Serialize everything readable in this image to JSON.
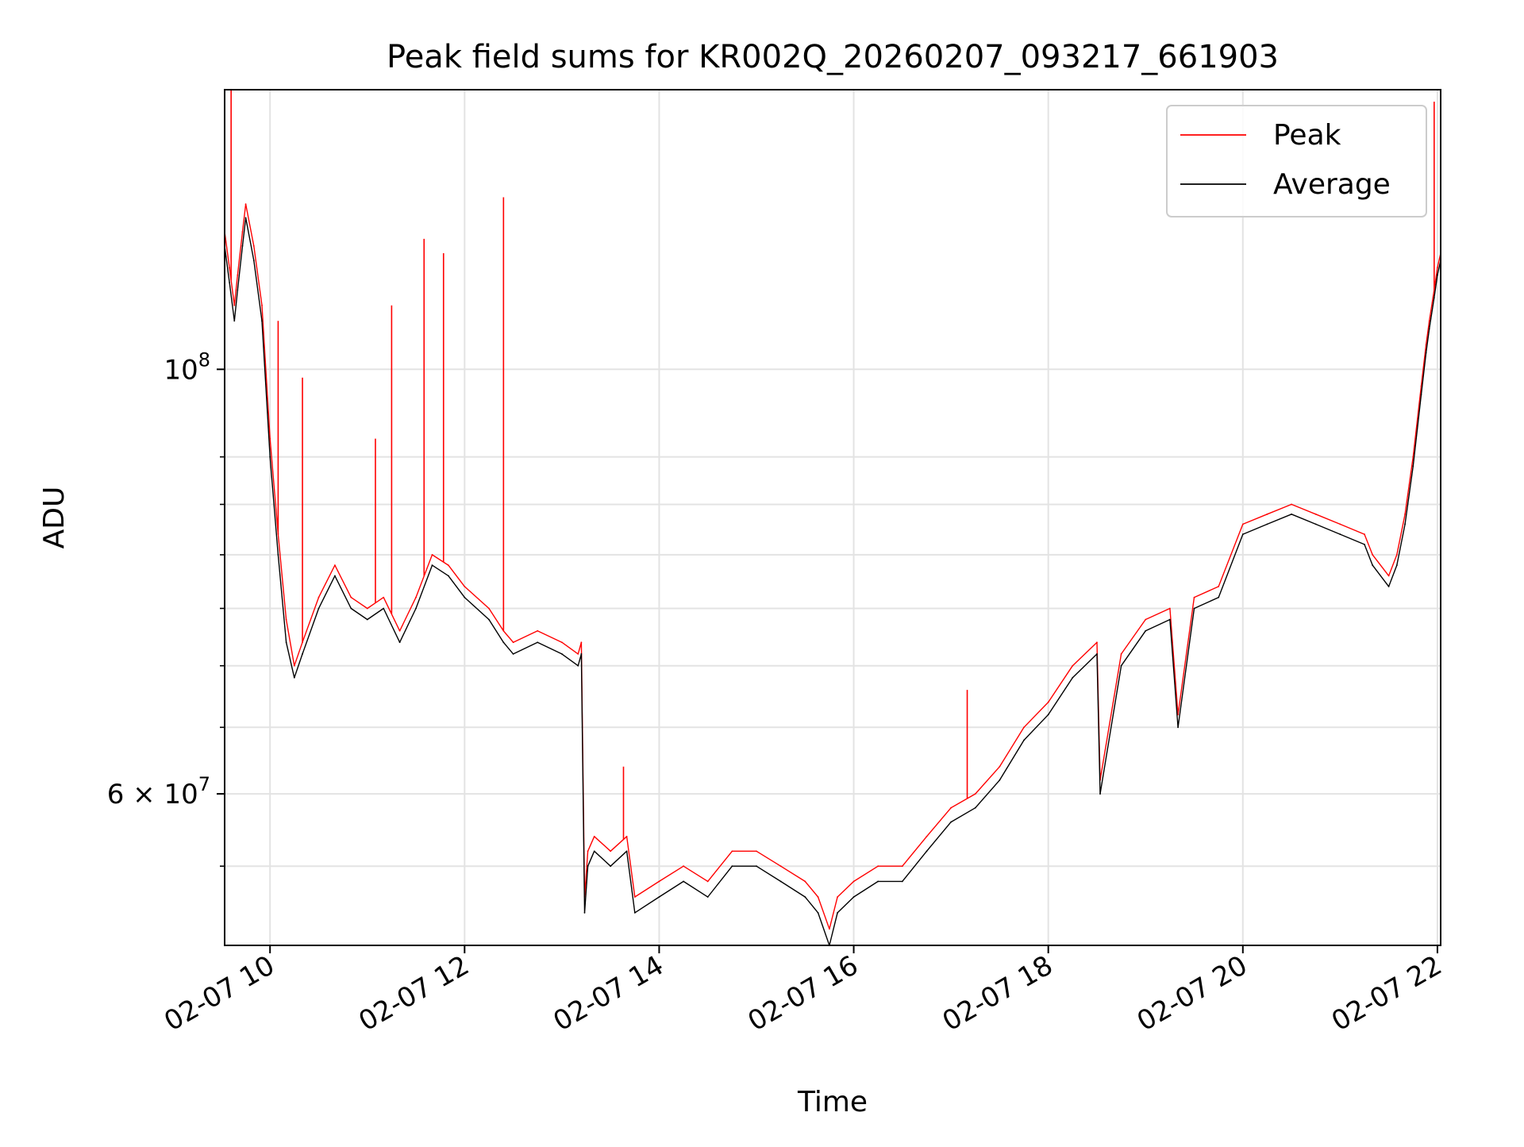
{
  "chart_data": {
    "type": "line",
    "title": "Peak field sums for KR002Q_20260207_093217_661903",
    "xlabel": "Time",
    "ylabel": "ADU",
    "x_scale": "time",
    "y_scale": "log",
    "xlim": [
      "02-07 09:32",
      "02-07 22:02"
    ],
    "ylim": [
      50000000,
      140000000
    ],
    "grid": true,
    "legend_position": "top-right",
    "x_ticks": [
      {
        "value": "02-07 10:00",
        "label": "02-07 10"
      },
      {
        "value": "02-07 12:00",
        "label": "02-07 12"
      },
      {
        "value": "02-07 14:00",
        "label": "02-07 14"
      },
      {
        "value": "02-07 16:00",
        "label": "02-07 16"
      },
      {
        "value": "02-07 18:00",
        "label": "02-07 18"
      },
      {
        "value": "02-07 20:00",
        "label": "02-07 20"
      },
      {
        "value": "02-07 22:00",
        "label": "02-07 22"
      }
    ],
    "y_major_ticks": [
      {
        "value": 60000000,
        "mantissa": "6 × 10",
        "exponent": "7"
      },
      {
        "value": 100000000,
        "mantissa": "10",
        "exponent": "8"
      }
    ],
    "y_minor_ticks": [
      55000000,
      65000000,
      70000000,
      75000000,
      80000000,
      85000000,
      90000000
    ],
    "x": [
      "02-07 09:32",
      "02-07 09:35",
      "02-07 09:38",
      "02-07 09:40",
      "02-07 09:43",
      "02-07 09:45",
      "02-07 09:50",
      "02-07 09:55",
      "02-07 10:00",
      "02-07 10:05",
      "02-07 10:10",
      "02-07 10:15",
      "02-07 10:20",
      "02-07 10:30",
      "02-07 10:40",
      "02-07 10:50",
      "02-07 11:00",
      "02-07 11:10",
      "02-07 11:20",
      "02-07 11:30",
      "02-07 11:40",
      "02-07 11:50",
      "02-07 12:00",
      "02-07 12:15",
      "02-07 12:24",
      "02-07 12:30",
      "02-07 12:45",
      "02-07 13:00",
      "02-07 13:10",
      "02-07 13:12",
      "02-07 13:14",
      "02-07 13:16",
      "02-07 13:20",
      "02-07 13:30",
      "02-07 13:40",
      "02-07 13:45",
      "02-07 14:00",
      "02-07 14:15",
      "02-07 14:30",
      "02-07 14:45",
      "02-07 15:00",
      "02-07 15:15",
      "02-07 15:30",
      "02-07 15:38",
      "02-07 15:45",
      "02-07 15:50",
      "02-07 16:00",
      "02-07 16:15",
      "02-07 16:30",
      "02-07 16:45",
      "02-07 17:00",
      "02-07 17:15",
      "02-07 17:30",
      "02-07 17:45",
      "02-07 18:00",
      "02-07 18:15",
      "02-07 18:30",
      "02-07 18:32",
      "02-07 18:45",
      "02-07 19:00",
      "02-07 19:15",
      "02-07 19:20",
      "02-07 19:30",
      "02-07 19:45",
      "02-07 20:00",
      "02-07 20:15",
      "02-07 20:30",
      "02-07 20:45",
      "02-07 21:00",
      "02-07 21:15",
      "02-07 21:20",
      "02-07 21:30",
      "02-07 21:35",
      "02-07 21:40",
      "02-07 21:45",
      "02-07 21:50",
      "02-07 21:53",
      "02-07 21:55",
      "02-07 21:58",
      "02-07 22:00",
      "02-07 22:02"
    ],
    "series": [
      {
        "name": "Peak",
        "color": "#ff0000",
        "values": [
          118000000,
          113000000,
          108000000,
          112000000,
          118000000,
          122000000,
          116000000,
          108000000,
          92000000,
          82000000,
          74000000,
          70000000,
          72000000,
          76000000,
          79000000,
          76000000,
          75000000,
          76000000,
          73000000,
          76000000,
          80000000,
          79000000,
          77000000,
          75000000,
          73000000,
          72000000,
          73000000,
          72000000,
          71000000,
          72000000,
          53000000,
          56000000,
          57000000,
          56000000,
          57000000,
          53000000,
          54000000,
          55000000,
          54000000,
          56000000,
          56000000,
          55000000,
          54000000,
          53000000,
          51000000,
          53000000,
          54000000,
          55000000,
          55000000,
          57000000,
          59000000,
          60000000,
          62000000,
          65000000,
          67000000,
          70000000,
          72000000,
          61000000,
          71000000,
          74000000,
          75000000,
          66000000,
          76000000,
          77000000,
          83000000,
          84000000,
          85000000,
          84000000,
          83000000,
          82000000,
          80000000,
          78000000,
          80000000,
          84000000,
          90000000,
          98000000,
          103000000,
          106000000,
          110000000,
          113000000,
          115000000
        ]
      },
      {
        "name": "Average",
        "color": "#000000",
        "values": [
          116000000,
          111000000,
          106000000,
          110000000,
          116000000,
          120000000,
          114000000,
          106000000,
          90000000,
          80000000,
          72000000,
          69000000,
          71000000,
          75000000,
          78000000,
          75000000,
          74000000,
          75000000,
          72000000,
          75000000,
          79000000,
          78000000,
          76000000,
          74000000,
          72000000,
          71000000,
          72000000,
          71000000,
          70000000,
          71000000,
          52000000,
          55000000,
          56000000,
          55000000,
          56000000,
          52000000,
          53000000,
          54000000,
          53000000,
          55000000,
          55000000,
          54000000,
          53000000,
          52000000,
          50000000,
          52000000,
          53000000,
          54000000,
          54000000,
          56000000,
          58000000,
          59000000,
          61000000,
          64000000,
          66000000,
          69000000,
          71000000,
          60000000,
          70000000,
          73000000,
          74000000,
          65000000,
          75000000,
          76000000,
          82000000,
          83000000,
          84000000,
          83000000,
          82000000,
          81000000,
          79000000,
          77000000,
          79000000,
          83000000,
          89000000,
          97000000,
          102000000,
          105000000,
          109000000,
          112000000,
          114000000
        ]
      }
    ],
    "annotations_spikes": [
      {
        "series": "Peak",
        "x": "02-07 09:36",
        "value": 140000000
      },
      {
        "series": "Peak",
        "x": "02-07 10:05",
        "value": 106000000
      },
      {
        "series": "Peak",
        "x": "02-07 10:20",
        "value": 99000000
      },
      {
        "series": "Peak",
        "x": "02-07 11:05",
        "value": 92000000
      },
      {
        "series": "Peak",
        "x": "02-07 11:15",
        "value": 108000000
      },
      {
        "series": "Peak",
        "x": "02-07 11:35",
        "value": 117000000
      },
      {
        "series": "Peak",
        "x": "02-07 11:47",
        "value": 115000000
      },
      {
        "series": "Peak",
        "x": "02-07 12:24",
        "value": 123000000
      },
      {
        "series": "Peak",
        "x": "02-07 13:38",
        "value": 62000000
      },
      {
        "series": "Peak",
        "x": "02-07 17:10",
        "value": 68000000
      },
      {
        "series": "Peak",
        "x": "02-07 21:58",
        "value": 138000000
      }
    ]
  }
}
